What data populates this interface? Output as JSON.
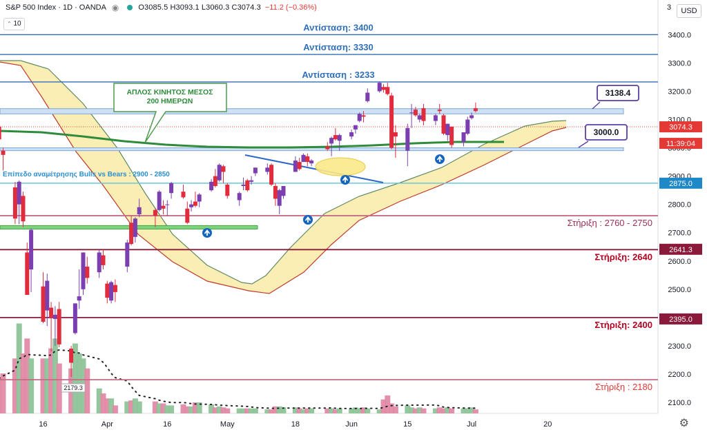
{
  "header": {
    "symbol": "S&P 500 Index · 1D · OANDA",
    "ohlc": "O3085.5 H3093.1 L3060.3 C3074.3",
    "change": "−11.2 (−0.36%)",
    "indicator": "10",
    "currency": "USD",
    "eye_icon": "eye-icon",
    "settings_icon": "gear-icon"
  },
  "colors": {
    "bull": "#7b3fb0",
    "bear": "#e02c3c",
    "resistance": "#2f6fba",
    "support": "#8b1a3a",
    "ma200": "#2e8b3a",
    "band_fill": "#fbeeb4"
  },
  "chart_data": {
    "type": "candlestick",
    "y_axis": {
      "ticks": [
        2100,
        2200,
        2300,
        2400,
        2500,
        2600,
        2700,
        2800,
        2900,
        3000,
        3100,
        3200,
        3300,
        3400
      ],
      "top_label": "3",
      "range": [
        2080,
        3500
      ]
    },
    "x_axis": {
      "ticks": [
        {
          "label": "16",
          "date": "2020-03-16"
        },
        {
          "label": "Apr",
          "date": "2020-04-01"
        },
        {
          "label": "16",
          "date": "2020-04-16"
        },
        {
          "label": "May",
          "date": "2020-05-01"
        },
        {
          "label": "18",
          "date": "2020-05-18"
        },
        {
          "label": "Jun",
          "date": "2020-06-01"
        },
        {
          "label": "15",
          "date": "2020-06-15"
        },
        {
          "label": "Jul",
          "date": "2020-07-01"
        },
        {
          "label": "20",
          "date": "2020-07-20"
        }
      ]
    },
    "candles": [
      {
        "date": "2020-03-05",
        "o": 3075,
        "h": 3085,
        "l": 3010,
        "c": 3030
      },
      {
        "date": "2020-03-06",
        "o": 2990,
        "h": 3000,
        "l": 2920,
        "c": 2975
      },
      {
        "date": "2020-03-09",
        "o": 2860,
        "h": 2880,
        "l": 2730,
        "c": 2750
      },
      {
        "date": "2020-03-10",
        "o": 2800,
        "h": 2885,
        "l": 2730,
        "c": 2880
      },
      {
        "date": "2020-03-11",
        "o": 2830,
        "h": 2845,
        "l": 2720,
        "c": 2740
      },
      {
        "date": "2020-03-12",
        "o": 2630,
        "h": 2665,
        "l": 2480,
        "c": 2480
      },
      {
        "date": "2020-03-13",
        "o": 2570,
        "h": 2715,
        "l": 2490,
        "c": 2710
      },
      {
        "date": "2020-03-16",
        "o": 2510,
        "h": 2560,
        "l": 2380,
        "c": 2385
      },
      {
        "date": "2020-03-17",
        "o": 2425,
        "h": 2555,
        "l": 2370,
        "c": 2530
      },
      {
        "date": "2020-03-18",
        "o": 2435,
        "h": 2455,
        "l": 2280,
        "c": 2400
      },
      {
        "date": "2020-03-19",
        "o": 2395,
        "h": 2440,
        "l": 2300,
        "c": 2410
      },
      {
        "date": "2020-03-20",
        "o": 2430,
        "h": 2455,
        "l": 2295,
        "c": 2305
      },
      {
        "date": "2020-03-23",
        "o": 2290,
        "h": 2300,
        "l": 2190,
        "c": 2240
      },
      {
        "date": "2020-03-24",
        "o": 2345,
        "h": 2450,
        "l": 2340,
        "c": 2450
      },
      {
        "date": "2020-03-25",
        "o": 2460,
        "h": 2570,
        "l": 2430,
        "c": 2475
      },
      {
        "date": "2020-03-26",
        "o": 2500,
        "h": 2630,
        "l": 2480,
        "c": 2630
      },
      {
        "date": "2020-03-27",
        "o": 2580,
        "h": 2615,
        "l": 2520,
        "c": 2540
      },
      {
        "date": "2020-03-30",
        "o": 2560,
        "h": 2640,
        "l": 2540,
        "c": 2630
      },
      {
        "date": "2020-03-31",
        "o": 2620,
        "h": 2640,
        "l": 2570,
        "c": 2585
      },
      {
        "date": "2020-04-01",
        "o": 2520,
        "h": 2530,
        "l": 2450,
        "c": 2470
      },
      {
        "date": "2020-04-02",
        "o": 2460,
        "h": 2530,
        "l": 2450,
        "c": 2525
      },
      {
        "date": "2020-04-03",
        "o": 2515,
        "h": 2535,
        "l": 2455,
        "c": 2490
      },
      {
        "date": "2020-04-06",
        "o": 2580,
        "h": 2675,
        "l": 2560,
        "c": 2665
      },
      {
        "date": "2020-04-07",
        "o": 2735,
        "h": 2760,
        "l": 2655,
        "c": 2660
      },
      {
        "date": "2020-04-08",
        "o": 2685,
        "h": 2755,
        "l": 2665,
        "c": 2750
      },
      {
        "date": "2020-04-09",
        "o": 2765,
        "h": 2820,
        "l": 2755,
        "c": 2790
      },
      {
        "date": "2020-04-13",
        "o": 2780,
        "h": 2785,
        "l": 2720,
        "c": 2760
      },
      {
        "date": "2020-04-14",
        "o": 2780,
        "h": 2850,
        "l": 2775,
        "c": 2845
      },
      {
        "date": "2020-04-15",
        "o": 2795,
        "h": 2815,
        "l": 2765,
        "c": 2785
      },
      {
        "date": "2020-04-16",
        "o": 2800,
        "h": 2815,
        "l": 2760,
        "c": 2800
      },
      {
        "date": "2020-04-17",
        "o": 2840,
        "h": 2880,
        "l": 2820,
        "c": 2875
      },
      {
        "date": "2020-04-20",
        "o": 2845,
        "h": 2870,
        "l": 2820,
        "c": 2825
      },
      {
        "date": "2020-04-21",
        "o": 2785,
        "h": 2810,
        "l": 2730,
        "c": 2735
      },
      {
        "date": "2020-04-22",
        "o": 2790,
        "h": 2815,
        "l": 2775,
        "c": 2800
      },
      {
        "date": "2020-04-23",
        "o": 2810,
        "h": 2845,
        "l": 2790,
        "c": 2795
      },
      {
        "date": "2020-04-24",
        "o": 2810,
        "h": 2840,
        "l": 2790,
        "c": 2835
      },
      {
        "date": "2020-04-27",
        "o": 2850,
        "h": 2890,
        "l": 2845,
        "c": 2880
      },
      {
        "date": "2020-04-28",
        "o": 2900,
        "h": 2925,
        "l": 2860,
        "c": 2865
      },
      {
        "date": "2020-04-29",
        "o": 2885,
        "h": 2945,
        "l": 2880,
        "c": 2940
      },
      {
        "date": "2020-04-30",
        "o": 2935,
        "h": 2940,
        "l": 2875,
        "c": 2915
      },
      {
        "date": "2020-05-01",
        "o": 2870,
        "h": 2875,
        "l": 2820,
        "c": 2830
      },
      {
        "date": "2020-05-04",
        "o": 2815,
        "h": 2845,
        "l": 2795,
        "c": 2840
      },
      {
        "date": "2020-05-05",
        "o": 2865,
        "h": 2895,
        "l": 2850,
        "c": 2870
      },
      {
        "date": "2020-05-06",
        "o": 2885,
        "h": 2890,
        "l": 2845,
        "c": 2850
      },
      {
        "date": "2020-05-07",
        "o": 2880,
        "h": 2900,
        "l": 2870,
        "c": 2885
      },
      {
        "date": "2020-05-08",
        "o": 2910,
        "h": 2930,
        "l": 2900,
        "c": 2930
      },
      {
        "date": "2020-05-11",
        "o": 2915,
        "h": 2945,
        "l": 2905,
        "c": 2930
      },
      {
        "date": "2020-05-12",
        "o": 2940,
        "h": 2945,
        "l": 2865,
        "c": 2870
      },
      {
        "date": "2020-05-13",
        "o": 2865,
        "h": 2875,
        "l": 2795,
        "c": 2820
      },
      {
        "date": "2020-05-14",
        "o": 2795,
        "h": 2855,
        "l": 2765,
        "c": 2850
      },
      {
        "date": "2020-05-15",
        "o": 2830,
        "h": 2865,
        "l": 2820,
        "c": 2865
      },
      {
        "date": "2020-05-18",
        "o": 2915,
        "h": 2970,
        "l": 2915,
        "c": 2955
      },
      {
        "date": "2020-05-19",
        "o": 2950,
        "h": 2965,
        "l": 2920,
        "c": 2925
      },
      {
        "date": "2020-05-20",
        "o": 2950,
        "h": 2980,
        "l": 2950,
        "c": 2975
      },
      {
        "date": "2020-05-21",
        "o": 2970,
        "h": 2980,
        "l": 2935,
        "c": 2950
      },
      {
        "date": "2020-05-22",
        "o": 2945,
        "h": 2960,
        "l": 2935,
        "c": 2955
      },
      {
        "date": "2020-05-26",
        "o": 3005,
        "h": 3020,
        "l": 2990,
        "c": 2995
      },
      {
        "date": "2020-05-27",
        "o": 3015,
        "h": 3040,
        "l": 2970,
        "c": 3035
      },
      {
        "date": "2020-05-28",
        "o": 3045,
        "h": 3070,
        "l": 3025,
        "c": 3030
      },
      {
        "date": "2020-05-29",
        "o": 3025,
        "h": 3050,
        "l": 2990,
        "c": 3045
      },
      {
        "date": "2020-06-01",
        "o": 3040,
        "h": 3065,
        "l": 3030,
        "c": 3055
      },
      {
        "date": "2020-06-02",
        "o": 3065,
        "h": 3080,
        "l": 3050,
        "c": 3080
      },
      {
        "date": "2020-06-03",
        "o": 3095,
        "h": 3125,
        "l": 3090,
        "c": 3120
      },
      {
        "date": "2020-06-04",
        "o": 3115,
        "h": 3130,
        "l": 3090,
        "c": 3110
      },
      {
        "date": "2020-06-05",
        "o": 3165,
        "h": 3210,
        "l": 3160,
        "c": 3195
      },
      {
        "date": "2020-06-08",
        "o": 3200,
        "h": 3235,
        "l": 3195,
        "c": 3230
      },
      {
        "date": "2020-06-09",
        "o": 3215,
        "h": 3225,
        "l": 3195,
        "c": 3205
      },
      {
        "date": "2020-06-10",
        "o": 3215,
        "h": 3230,
        "l": 3185,
        "c": 3190
      },
      {
        "date": "2020-06-11",
        "o": 3185,
        "h": 3195,
        "l": 2995,
        "c": 3000
      },
      {
        "date": "2020-06-12",
        "o": 3055,
        "h": 3080,
        "l": 2965,
        "c": 3040
      },
      {
        "date": "2020-06-15",
        "o": 2990,
        "h": 3085,
        "l": 2935,
        "c": 3070
      },
      {
        "date": "2020-06-16",
        "o": 3125,
        "h": 3155,
        "l": 3070,
        "c": 3125
      },
      {
        "date": "2020-06-17",
        "o": 3135,
        "h": 3145,
        "l": 3110,
        "c": 3115
      },
      {
        "date": "2020-06-18",
        "o": 3100,
        "h": 3120,
        "l": 3090,
        "c": 3115
      },
      {
        "date": "2020-06-19",
        "o": 3140,
        "h": 3155,
        "l": 3080,
        "c": 3095
      },
      {
        "date": "2020-06-22",
        "o": 3095,
        "h": 3120,
        "l": 3080,
        "c": 3115
      },
      {
        "date": "2020-06-23",
        "o": 3135,
        "h": 3155,
        "l": 3120,
        "c": 3130
      },
      {
        "date": "2020-06-24",
        "o": 3115,
        "h": 3120,
        "l": 3045,
        "c": 3050
      },
      {
        "date": "2020-06-25",
        "o": 3045,
        "h": 3085,
        "l": 3025,
        "c": 3085
      },
      {
        "date": "2020-06-26",
        "o": 3075,
        "h": 3075,
        "l": 3000,
        "c": 3010
      },
      {
        "date": "2020-06-29",
        "o": 3020,
        "h": 3055,
        "l": 3005,
        "c": 3055
      },
      {
        "date": "2020-06-30",
        "o": 3050,
        "h": 3110,
        "l": 3045,
        "c": 3100
      },
      {
        "date": "2020-07-01",
        "o": 3105,
        "h": 3125,
        "l": 3100,
        "c": 3115
      },
      {
        "date": "2020-07-02",
        "o": 3140,
        "h": 3160,
        "l": 3125,
        "c": 3130
      }
    ],
    "horizontal_levels": [
      {
        "label": "Αντίσταση: 3400",
        "value": 3400,
        "kind": "resistance"
      },
      {
        "label": "Αντίσταση: 3330",
        "value": 3330,
        "kind": "resistance"
      },
      {
        "label": "Αντίσταση : 3233",
        "value": 3233,
        "kind": "resistance"
      },
      {
        "label": "Στήριξη : 2760 - 2750",
        "value": 2760,
        "kind": "support_light"
      },
      {
        "label": "Στήριξη: 2640",
        "value": 2640,
        "kind": "support"
      },
      {
        "label": "Στήριξη: 2400",
        "value": 2400,
        "kind": "support"
      },
      {
        "label": "Στήριξη : 2180",
        "value": 2180,
        "kind": "support_light"
      }
    ],
    "level_tag": "Επίπεδο αναμέτρησης Bulls vs Bears : 2900 - 2850",
    "ma_callout": "ΑΠΛΟΣ ΚΙΝΗΤΟΣ ΜΕΣΟΣ\n200 ΗΜΕΡΩΝ",
    "callouts": [
      {
        "text": "3138.4",
        "value": 3138.4
      },
      {
        "text": "3000.0",
        "value": 3000
      }
    ],
    "price_labels": [
      {
        "text": "3074.3",
        "value": 3074.3,
        "color": "#e53935"
      },
      {
        "text": "11:39:04",
        "value": 3010,
        "color": "#e53935"
      },
      {
        "text": "2875.0",
        "value": 2875,
        "color": "#1e88c8"
      },
      {
        "text": "2641.3",
        "value": 2641.3,
        "color": "#8b1a3a"
      },
      {
        "text": "2395.0",
        "value": 2395,
        "color": "#8b1a3a"
      }
    ],
    "low_label": "2179.3",
    "volume": [
      35,
      40,
      55,
      90,
      60,
      75,
      55,
      55,
      55,
      65,
      75,
      50,
      45,
      70,
      60,
      55,
      45,
      25,
      20,
      15,
      15,
      8,
      12,
      13,
      15,
      12,
      12,
      10,
      10,
      8,
      8,
      9,
      7,
      7,
      11,
      11,
      9,
      6,
      7,
      6,
      5,
      5,
      5,
      5,
      5,
      5,
      4,
      4,
      7,
      7,
      6,
      6,
      5,
      4,
      5,
      5,
      5,
      5,
      4,
      5,
      5,
      6,
      5,
      6,
      5,
      4,
      14,
      18,
      10,
      7,
      8,
      6,
      5,
      6,
      5,
      5,
      6,
      5,
      6,
      5,
      5,
      5,
      6,
      4
    ]
  }
}
